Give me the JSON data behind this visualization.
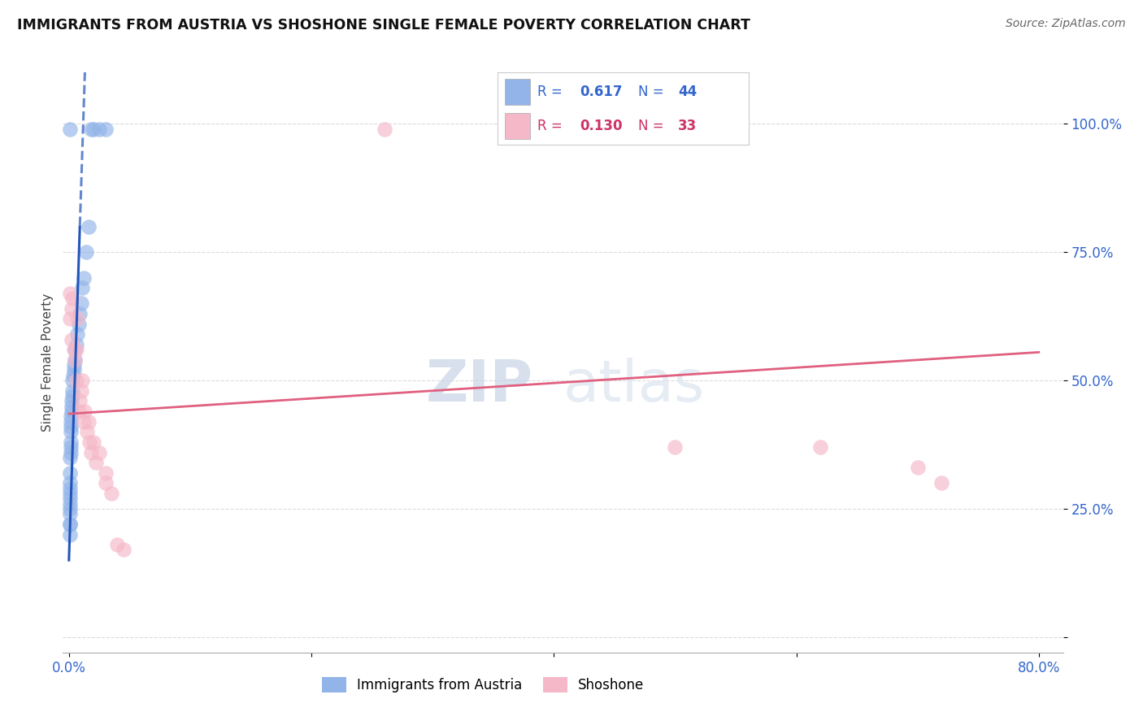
{
  "title": "IMMIGRANTS FROM AUSTRIA VS SHOSHONE SINGLE FEMALE POVERTY CORRELATION CHART",
  "source": "Source: ZipAtlas.com",
  "ylabel": "Single Female Poverty",
  "legend1_label": "Immigrants from Austria",
  "legend2_label": "Shoshone",
  "R1": "0.617",
  "N1": "44",
  "R2": "0.130",
  "N2": "33",
  "color1": "#92b4e8",
  "color2": "#f5b8c8",
  "trendline1_color": "#2255bb",
  "trendline2_color": "#e06080",
  "watermark_zip": "ZIP",
  "watermark_atlas": "atlas",
  "blue_x": [
    0.0005,
    0.0006,
    0.0007,
    0.0007,
    0.0008,
    0.0008,
    0.0009,
    0.001,
    0.001,
    0.001,
    0.001,
    0.001,
    0.0012,
    0.0013,
    0.0014,
    0.0015,
    0.0016,
    0.0017,
    0.0018,
    0.002,
    0.002,
    0.0022,
    0.0025,
    0.003,
    0.003,
    0.0035,
    0.004,
    0.004,
    0.005,
    0.005,
    0.006,
    0.007,
    0.008,
    0.009,
    0.01,
    0.011,
    0.012,
    0.014,
    0.016,
    0.018,
    0.02,
    0.025,
    0.03,
    0.0006
  ],
  "blue_y": [
    0.2,
    0.22,
    0.24,
    0.26,
    0.27,
    0.28,
    0.3,
    0.22,
    0.25,
    0.29,
    0.32,
    0.35,
    0.36,
    0.37,
    0.38,
    0.4,
    0.41,
    0.42,
    0.43,
    0.44,
    0.45,
    0.46,
    0.47,
    0.48,
    0.5,
    0.51,
    0.52,
    0.53,
    0.54,
    0.56,
    0.57,
    0.59,
    0.61,
    0.63,
    0.65,
    0.68,
    0.7,
    0.75,
    0.8,
    0.99,
    0.99,
    0.99,
    0.99,
    0.99
  ],
  "pink_x": [
    0.001,
    0.001,
    0.002,
    0.002,
    0.003,
    0.004,
    0.005,
    0.006,
    0.006,
    0.007,
    0.008,
    0.009,
    0.01,
    0.011,
    0.012,
    0.013,
    0.015,
    0.016,
    0.017,
    0.018,
    0.02,
    0.022,
    0.025,
    0.03,
    0.03,
    0.035,
    0.04,
    0.045,
    0.26,
    0.5,
    0.62,
    0.7,
    0.72
  ],
  "pink_y": [
    0.62,
    0.67,
    0.58,
    0.64,
    0.66,
    0.56,
    0.54,
    0.5,
    0.56,
    0.62,
    0.44,
    0.46,
    0.48,
    0.5,
    0.42,
    0.44,
    0.4,
    0.42,
    0.38,
    0.36,
    0.38,
    0.34,
    0.36,
    0.3,
    0.32,
    0.28,
    0.18,
    0.17,
    0.99,
    0.37,
    0.37,
    0.33,
    0.3
  ],
  "trendline_blue_x0": 0.0,
  "trendline_blue_y0": 0.15,
  "trendline_blue_x1": 0.009,
  "trendline_blue_y1": 0.8,
  "trendline_pink_x0": 0.0,
  "trendline_pink_y0": 0.435,
  "trendline_pink_x1": 0.8,
  "trendline_pink_y1": 0.555,
  "xlim": [
    -0.005,
    0.82
  ],
  "ylim": [
    -0.03,
    1.1
  ],
  "x_ticks": [
    0.0,
    0.2,
    0.4,
    0.6,
    0.8
  ],
  "x_tick_labels": [
    "0.0%",
    "",
    "",
    "",
    "80.0%"
  ],
  "y_ticks": [
    0.0,
    0.25,
    0.5,
    0.75,
    1.0
  ],
  "y_tick_labels": [
    "",
    "25.0%",
    "50.0%",
    "75.0%",
    "100.0%"
  ]
}
